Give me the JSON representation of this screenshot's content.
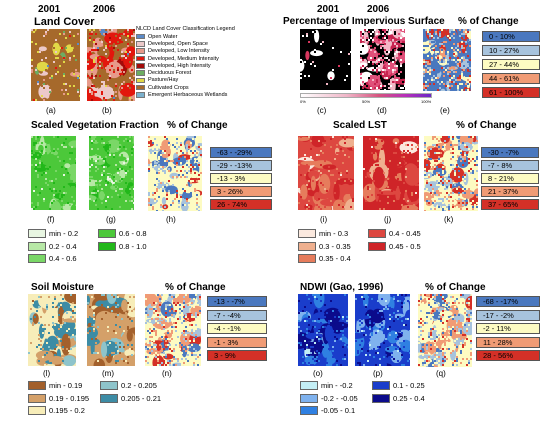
{
  "land_cover": {
    "years": [
      "2001",
      "2006"
    ],
    "title": "Land Cover",
    "legend_title": "NLCD Land Cover Classification Legend",
    "legend": [
      {
        "label": "Open Water",
        "color": "#5b8ac7"
      },
      {
        "label": "Developed, Open Space",
        "color": "#ecc9c9"
      },
      {
        "label": "Developed, Low Intensity",
        "color": "#e79a8a"
      },
      {
        "label": "Developed, Medium Intensity",
        "color": "#e2170d"
      },
      {
        "label": "Developed, High Intensity",
        "color": "#a30b09"
      },
      {
        "label": "Deciduous Forest",
        "color": "#6cad62"
      },
      {
        "label": "Pasture/Hay",
        "color": "#e1d847"
      },
      {
        "label": "Cultivated Crops",
        "color": "#a6692b"
      },
      {
        "label": "Emergent Herbaceous Wetlands",
        "color": "#7bb0cc"
      }
    ],
    "captions": [
      "(a)",
      "(b)"
    ]
  },
  "impervious": {
    "years": [
      "2001",
      "2006"
    ],
    "title": "Percentage of Impervious Surface",
    "change_title": "% of Change",
    "colorbar_ticks": [
      "0%",
      "50%",
      "100%"
    ],
    "change_classes": [
      "0 - 10%",
      "10 - 27%",
      "27 - 44%",
      "44 - 61%",
      "61 - 100%"
    ],
    "captions": [
      "(c)",
      "(d)",
      "(e)"
    ]
  },
  "vegetation": {
    "title": "Scaled Vegetation Fraction",
    "change_title": "% of Change",
    "change_classes": [
      "-63 - -29%",
      "-29 - -13%",
      "-13 - 3%",
      "3 - 26%",
      "26 - 74%"
    ],
    "classes": [
      "min - 0.2",
      "0.2 - 0.4",
      "0.4 - 0.6",
      "0.6 - 0.8",
      "0.8 - 1.0"
    ],
    "captions": [
      "(f)",
      "(g)",
      "(h)"
    ]
  },
  "lst": {
    "title": "Scaled LST",
    "change_title": "% of Change",
    "change_classes": [
      "-30 - -7%",
      "-7 - 8%",
      "8 - 21%",
      "21 - 37%",
      "37 - 65%"
    ],
    "classes": [
      "min - 0.3",
      "0.3 - 0.35",
      "0.35 - 0.4",
      "0.4 - 0.45",
      "0.45 - 0.5"
    ],
    "captions": [
      "(i)",
      "(j)",
      "(k)"
    ]
  },
  "soil": {
    "title": "Soil Moisture",
    "change_title": "% of Change",
    "change_classes": [
      "-13 - -7%",
      "-7 - -4%",
      "-4 - -1%",
      "-1 - 3%",
      "3 - 9%"
    ],
    "classes": [
      "min - 0.19",
      "0.19 - 0.195",
      "0.195 - 0.2",
      "0.2 - 0.205",
      "0.205 - 0.21"
    ],
    "captions": [
      "(l)",
      "(m)",
      "(n)"
    ]
  },
  "ndwi": {
    "title": "NDWI (Gao, 1996)",
    "change_title": "% of Change",
    "change_classes": [
      "-68 - -17%",
      "-17 - -2%",
      "-2 - 11%",
      "11 - 28%",
      "28 - 56%"
    ],
    "classes": [
      "min - -0.2",
      "-0.2 - -0.05",
      "-0.05 - 0.1",
      "0.1 - 0.25",
      "0.25 - 0.4"
    ],
    "captions": [
      "(o)",
      "(p)",
      "(q)"
    ]
  },
  "colors": {
    "change": [
      "#4a78bf",
      "#a7c3dd",
      "#fdfbc2",
      "#f09b75",
      "#d43027"
    ],
    "veg": [
      "#e8f6e2",
      "#b7e8a6",
      "#7ad767",
      "#4cc83a",
      "#22b81a"
    ],
    "lst": [
      "#fbe9df",
      "#efb08f",
      "#e67c5c",
      "#dd4740",
      "#cf2428"
    ],
    "soil": [
      "#a3602c",
      "#d4a069",
      "#f7edb9",
      "#8ec4cb",
      "#3d8ca5"
    ],
    "ndwi": [
      "#c3eef5",
      "#7fb2ee",
      "#2f80e2",
      "#1a3dcb",
      "#0b0b8b"
    ]
  }
}
